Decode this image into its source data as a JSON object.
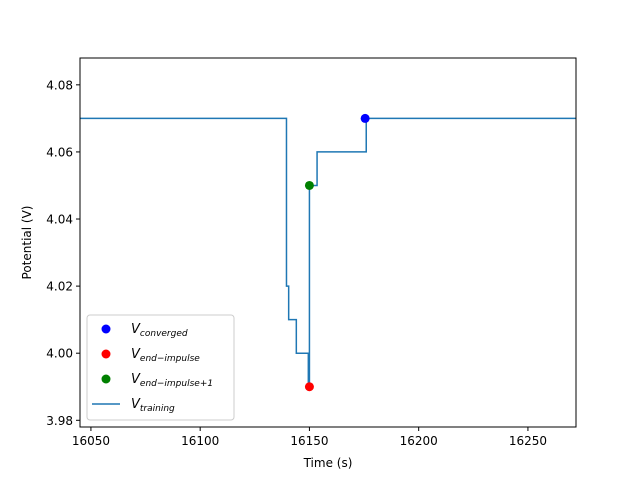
{
  "chart_data": {
    "type": "line",
    "xlabel": "Time (s)",
    "ylabel": "Potential (V)",
    "xlim": [
      16045,
      16272
    ],
    "ylim": [
      3.978,
      4.088
    ],
    "xticks": [
      16050,
      16100,
      16150,
      16200,
      16250
    ],
    "yticks": [
      3.98,
      4.0,
      4.02,
      4.04,
      4.06,
      4.08
    ],
    "xtick_labels": [
      "16050",
      "16100",
      "16150",
      "16200",
      "16250"
    ],
    "ytick_labels": [
      "3.98",
      "4.00",
      "4.02",
      "4.04",
      "4.06",
      "4.08"
    ],
    "grid": false,
    "legend_position": "lower-left",
    "series": [
      {
        "name": "V",
        "name_sub": "training",
        "kind": "step",
        "color": "#1f77b4",
        "x": [
          16045,
          16139.5,
          16139.5,
          16140.5,
          16140.5,
          16141,
          16141,
          16144,
          16144,
          16149.5,
          16149.5,
          16150,
          16150,
          16151,
          16151,
          16153.5,
          16153.5,
          16175.5,
          16175.5,
          16176,
          16176,
          16272
        ],
        "y": [
          4.07,
          4.07,
          4.02,
          4.02,
          4.01,
          4.01,
          4.01,
          4.01,
          4.0,
          4.0,
          3.99,
          3.99,
          4.05,
          4.05,
          4.05,
          4.05,
          4.06,
          4.06,
          4.06,
          4.06,
          4.07,
          4.07
        ]
      },
      {
        "name": "V",
        "name_sub": "converged",
        "kind": "point",
        "color": "#0000ff",
        "x": [
          16175.5
        ],
        "y": [
          4.07
        ]
      },
      {
        "name": "V",
        "name_sub": "end−impulse",
        "kind": "point",
        "color": "#ff0000",
        "x": [
          16150
        ],
        "y": [
          3.99
        ]
      },
      {
        "name": "V",
        "name_sub": "end−impulse+1",
        "kind": "point",
        "color": "#008000",
        "x": [
          16150
        ],
        "y": [
          4.05
        ]
      }
    ],
    "legend_order": [
      1,
      2,
      3,
      0
    ]
  }
}
